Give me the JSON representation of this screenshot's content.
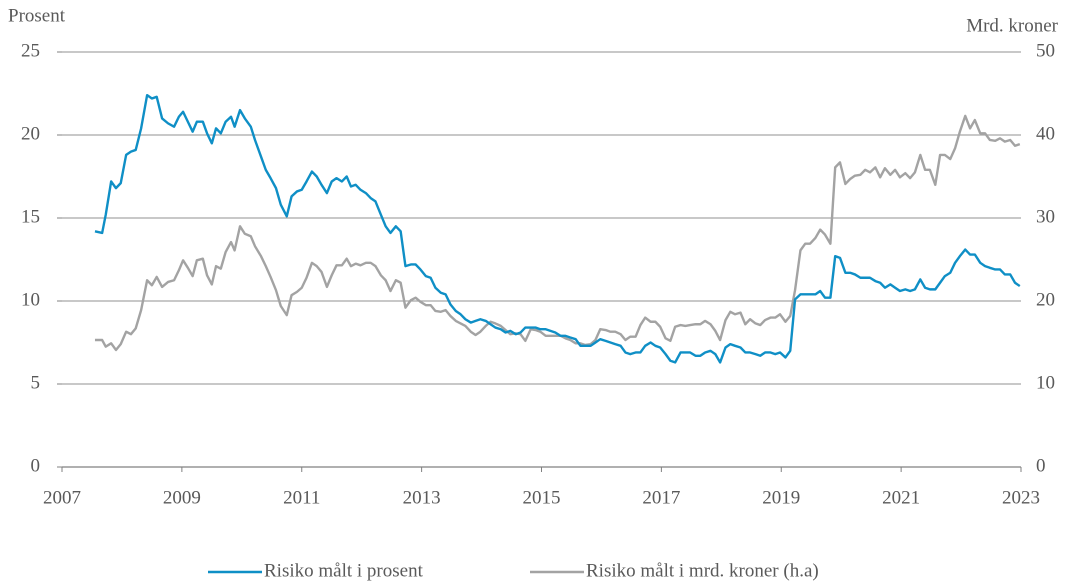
{
  "chart_data": {
    "type": "line",
    "y_label": "Prosent",
    "y2_label": "Mrd. kroner",
    "xlim": [
      2007,
      2023
    ],
    "xticks": [
      2007,
      2009,
      2011,
      2013,
      2015,
      2017,
      2019,
      2021,
      2023
    ],
    "ylim": [
      0,
      25
    ],
    "yticks": [
      0,
      5,
      10,
      15,
      20,
      25
    ],
    "y2lim": [
      0,
      50
    ],
    "y2ticks": [
      0,
      10,
      20,
      30,
      40,
      50
    ],
    "grid": true,
    "legend": "bottom",
    "x": [
      2007.55,
      2007.67,
      2007.73,
      2007.82,
      2007.9,
      2007.98,
      2008.07,
      2008.15,
      2008.23,
      2008.32,
      2008.42,
      2008.5,
      2008.58,
      2008.67,
      2008.77,
      2008.87,
      2008.95,
      2009.02,
      2009.1,
      2009.18,
      2009.25,
      2009.35,
      2009.42,
      2009.5,
      2009.57,
      2009.65,
      2009.73,
      2009.82,
      2009.88,
      2009.97,
      2010.05,
      2010.15,
      2010.22,
      2010.32,
      2010.4,
      2010.48,
      2010.57,
      2010.65,
      2010.75,
      2010.83,
      2010.92,
      2011.0,
      2011.08,
      2011.17,
      2011.25,
      2011.33,
      2011.42,
      2011.5,
      2011.58,
      2011.67,
      2011.75,
      2011.82,
      2011.9,
      2011.98,
      2012.07,
      2012.15,
      2012.23,
      2012.32,
      2012.4,
      2012.48,
      2012.57,
      2012.65,
      2012.73,
      2012.82,
      2012.9,
      2012.98,
      2013.07,
      2013.15,
      2013.23,
      2013.32,
      2013.4,
      2013.48,
      2013.57,
      2013.65,
      2013.73,
      2013.82,
      2013.9,
      2013.98,
      2014.07,
      2014.15,
      2014.23,
      2014.32,
      2014.4,
      2014.48,
      2014.57,
      2014.65,
      2014.73,
      2014.82,
      2014.9,
      2014.98,
      2015.07,
      2015.15,
      2015.23,
      2015.32,
      2015.4,
      2015.48,
      2015.57,
      2015.65,
      2015.73,
      2015.82,
      2015.9,
      2015.98,
      2016.07,
      2016.15,
      2016.23,
      2016.32,
      2016.4,
      2016.48,
      2016.57,
      2016.65,
      2016.73,
      2016.82,
      2016.9,
      2016.98,
      2017.07,
      2017.15,
      2017.23,
      2017.32,
      2017.4,
      2017.48,
      2017.57,
      2017.65,
      2017.73,
      2017.82,
      2017.9,
      2017.98,
      2018.07,
      2018.15,
      2018.23,
      2018.32,
      2018.4,
      2018.48,
      2018.57,
      2018.65,
      2018.73,
      2018.82,
      2018.9,
      2018.98,
      2019.07,
      2019.15,
      2019.23,
      2019.32,
      2019.4,
      2019.48,
      2019.57,
      2019.65,
      2019.73,
      2019.82,
      2019.9,
      2019.98,
      2020.07,
      2020.15,
      2020.23,
      2020.32,
      2020.4,
      2020.48,
      2020.57,
      2020.65,
      2020.73,
      2020.82,
      2020.9,
      2020.98,
      2021.07,
      2021.15,
      2021.23,
      2021.32,
      2021.4,
      2021.48,
      2021.57,
      2021.65,
      2021.73,
      2021.82,
      2021.9,
      2021.98,
      2022.07,
      2022.15,
      2022.23,
      2022.32,
      2022.4,
      2022.48,
      2022.57,
      2022.65,
      2022.73,
      2022.82,
      2022.9,
      2022.98
    ],
    "series": [
      {
        "name": "Risiko målt i prosent",
        "color": "#0f8fc6",
        "values": [
          14.2,
          14.1,
          15.2,
          17.2,
          16.8,
          17.1,
          18.8,
          19.0,
          19.1,
          20.4,
          22.4,
          22.2,
          22.3,
          21.0,
          20.7,
          20.5,
          21.1,
          21.4,
          20.8,
          20.2,
          20.8,
          20.8,
          20.1,
          19.5,
          20.4,
          20.1,
          20.8,
          21.1,
          20.5,
          21.5,
          21.0,
          20.5,
          19.7,
          18.7,
          17.9,
          17.4,
          16.8,
          15.8,
          15.1,
          16.3,
          16.6,
          16.7,
          17.2,
          17.8,
          17.5,
          17.0,
          16.5,
          17.2,
          17.4,
          17.2,
          17.5,
          16.9,
          17.0,
          16.7,
          16.5,
          16.2,
          16.0,
          15.2,
          14.5,
          14.1,
          14.5,
          14.2,
          12.1,
          12.2,
          12.2,
          11.9,
          11.5,
          11.4,
          10.8,
          10.5,
          10.4,
          9.8,
          9.4,
          9.2,
          8.9,
          8.7,
          8.8,
          8.9,
          8.8,
          8.6,
          8.4,
          8.3,
          8.1,
          8.2,
          8.0,
          8.1,
          8.4,
          8.4,
          8.4,
          8.3,
          8.3,
          8.2,
          8.1,
          7.9,
          7.9,
          7.8,
          7.7,
          7.3,
          7.3,
          7.3,
          7.5,
          7.7,
          7.6,
          7.5,
          7.4,
          7.3,
          6.9,
          6.8,
          6.9,
          6.9,
          7.3,
          7.5,
          7.3,
          7.2,
          6.8,
          6.4,
          6.3,
          6.9,
          6.9,
          6.9,
          6.7,
          6.7,
          6.9,
          7.0,
          6.8,
          6.3,
          7.2,
          7.4,
          7.3,
          7.2,
          6.9,
          6.9,
          6.8,
          6.7,
          6.9,
          6.9,
          6.8,
          6.9,
          6.6,
          7.0,
          10.1,
          10.4,
          10.4,
          10.4,
          10.4,
          10.6,
          10.2,
          10.2,
          12.7,
          12.6,
          11.7,
          11.7,
          11.6,
          11.4,
          11.4,
          11.4,
          11.2,
          11.1,
          10.8,
          11.0,
          10.8,
          10.6,
          10.7,
          10.6,
          10.7,
          11.3,
          10.8,
          10.7,
          10.7,
          11.1,
          11.5,
          11.7,
          12.3,
          12.7,
          13.1,
          12.8,
          12.8,
          12.3,
          12.1,
          12.0,
          11.9,
          11.9,
          11.6,
          11.6,
          11.1,
          10.9
        ]
      },
      {
        "name": "Risiko målt i mrd. kroner (h.a)",
        "color": "#a3a3a3",
        "axis": "y2",
        "values": [
          15.3,
          15.3,
          14.5,
          14.9,
          14.1,
          14.8,
          16.3,
          16.0,
          16.7,
          18.9,
          22.5,
          21.9,
          22.9,
          21.7,
          22.3,
          22.5,
          23.7,
          24.9,
          24.0,
          23.0,
          24.9,
          25.1,
          23.1,
          22.0,
          24.2,
          23.9,
          25.9,
          27.1,
          26.1,
          29.0,
          28.1,
          27.8,
          26.6,
          25.4,
          24.2,
          22.9,
          21.3,
          19.4,
          18.3,
          20.7,
          21.1,
          21.6,
          22.8,
          24.6,
          24.2,
          23.5,
          21.7,
          23.1,
          24.3,
          24.3,
          25.1,
          24.2,
          24.5,
          24.3,
          24.6,
          24.6,
          24.2,
          23.1,
          22.5,
          21.2,
          22.5,
          22.2,
          19.2,
          20.1,
          20.4,
          19.9,
          19.5,
          19.5,
          18.8,
          18.7,
          18.9,
          18.2,
          17.6,
          17.3,
          17.0,
          16.3,
          15.9,
          16.3,
          17.0,
          17.5,
          17.3,
          17.0,
          16.5,
          16.0,
          16.1,
          16.0,
          15.2,
          16.6,
          16.5,
          16.3,
          15.8,
          15.8,
          15.8,
          15.8,
          15.5,
          15.3,
          14.9,
          14.9,
          14.7,
          14.8,
          15.3,
          16.6,
          16.5,
          16.3,
          16.3,
          16.0,
          15.3,
          15.7,
          15.7,
          17.1,
          18.0,
          17.5,
          17.5,
          16.9,
          15.5,
          15.2,
          16.9,
          17.1,
          17.0,
          17.1,
          17.2,
          17.2,
          17.6,
          17.2,
          16.4,
          15.3,
          17.7,
          18.7,
          18.4,
          18.6,
          17.2,
          17.8,
          17.3,
          17.1,
          17.7,
          18.0,
          18.0,
          18.4,
          17.5,
          18.2,
          21.3,
          26.1,
          26.9,
          26.9,
          27.6,
          28.6,
          28.0,
          26.9,
          36.1,
          36.7,
          34.1,
          34.7,
          35.1,
          35.2,
          35.8,
          35.5,
          36.1,
          34.9,
          36.0,
          35.2,
          35.8,
          34.9,
          35.4,
          34.8,
          35.5,
          37.6,
          35.8,
          35.8,
          34.0,
          37.6,
          37.6,
          37.1,
          38.4,
          40.4,
          42.3,
          40.8,
          41.8,
          40.2,
          40.2,
          39.4,
          39.3,
          39.6,
          39.2,
          39.4,
          38.7,
          38.9
        ]
      }
    ]
  }
}
